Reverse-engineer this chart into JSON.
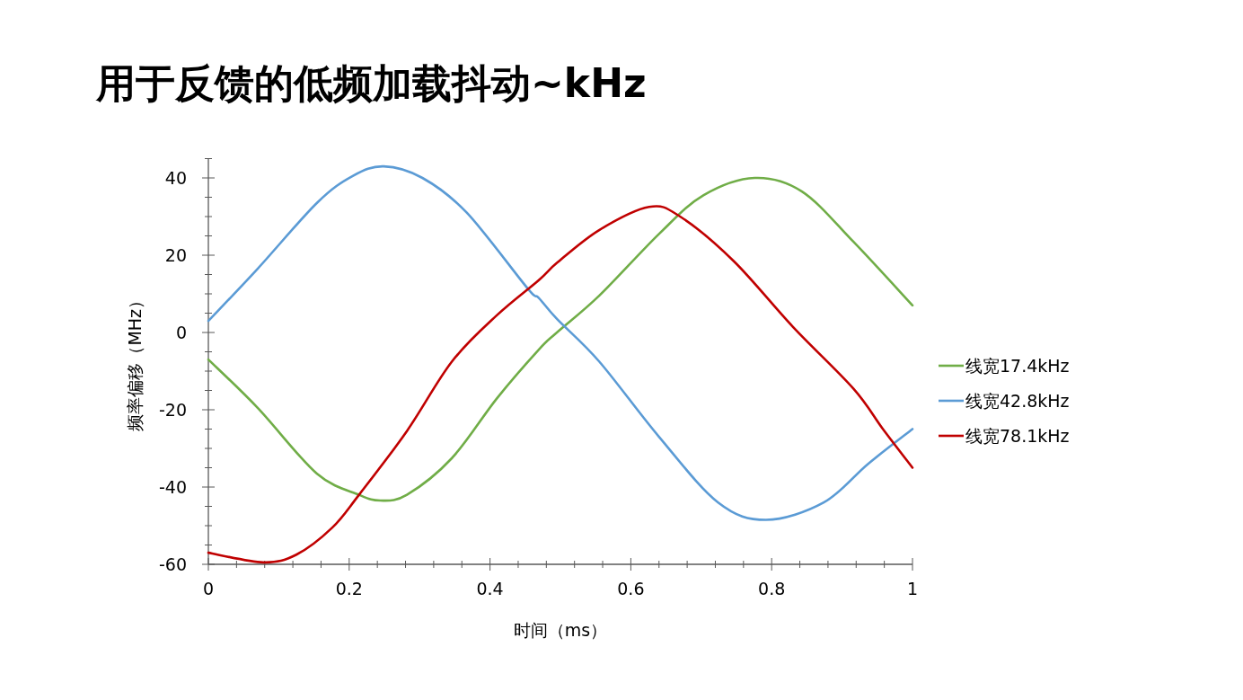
{
  "chart_data": {
    "type": "line",
    "title": "用于反馈的低频加载抖动~kHz",
    "xlabel": "时间（ms）",
    "ylabel": "频率偏移（MHz）",
    "xlim": [
      0,
      1
    ],
    "ylim": [
      -60,
      45
    ],
    "xticks": [
      0,
      {
        "value": 0.04,
        "label": null
      },
      {
        "value": 0.08,
        "label": null
      },
      {
        "value": 0.12,
        "label": null
      },
      {
        "value": 0.16,
        "label": null
      },
      0.2,
      {
        "value": 0.24,
        "label": null
      },
      {
        "value": 0.28,
        "label": null
      },
      {
        "value": 0.32,
        "label": null
      },
      {
        "value": 0.36,
        "label": null
      },
      0.4,
      {
        "value": 0.44,
        "label": null
      },
      {
        "value": 0.48,
        "label": null
      },
      {
        "value": 0.52,
        "label": null
      },
      {
        "value": 0.56,
        "label": null
      },
      0.6,
      {
        "value": 0.64,
        "label": null
      },
      {
        "value": 0.68,
        "label": null
      },
      {
        "value": 0.72,
        "label": null
      },
      {
        "value": 0.76,
        "label": null
      },
      0.8,
      {
        "value": 0.84,
        "label": null
      },
      {
        "value": 0.88,
        "label": null
      },
      {
        "value": 0.92,
        "label": null
      },
      {
        "value": 0.96,
        "label": null
      },
      1
    ],
    "yticks": [
      -60,
      {
        "value": -55,
        "label": null
      },
      {
        "value": -50,
        "label": null
      },
      {
        "value": -45,
        "label": null
      },
      -40,
      {
        "value": -35,
        "label": null
      },
      {
        "value": -30,
        "label": null
      },
      {
        "value": -25,
        "label": null
      },
      -20,
      {
        "value": -15,
        "label": null
      },
      {
        "value": -10,
        "label": null
      },
      {
        "value": -5,
        "label": null
      },
      0,
      {
        "value": 5,
        "label": null
      },
      {
        "value": 10,
        "label": null
      },
      {
        "value": 15,
        "label": null
      },
      20,
      {
        "value": 25,
        "label": null
      },
      {
        "value": 30,
        "label": null
      },
      {
        "value": 35,
        "label": null
      },
      40,
      {
        "value": 45,
        "label": null
      }
    ],
    "grid": false,
    "legend": "right",
    "marker": "none",
    "line_style": "solid",
    "series": [
      {
        "name": "线宽17.4kHz",
        "color": "#70ad47",
        "x": [
          0,
          0.07,
          0.154,
          0.214,
          0.244,
          0.282,
          0.346,
          0.41,
          0.469,
          0.495,
          0.555,
          0.64,
          0.703,
          0.776,
          0.843,
          0.916,
          1
        ],
        "values": [
          -7,
          -19.5,
          -36.5,
          -42,
          -43.5,
          -42,
          -32.5,
          -17,
          -4.5,
          0,
          9.5,
          25.5,
          35.5,
          40,
          36.5,
          23.5,
          7
        ]
      },
      {
        "name": "线宽42.8kHz",
        "color": "#5b9bd5",
        "x": [
          0,
          0.07,
          0.154,
          0.205,
          0.249,
          0.304,
          0.367,
          0.453,
          0.469,
          0.495,
          0.555,
          0.64,
          0.724,
          0.792,
          0.874,
          0.937,
          1
        ],
        "values": [
          3,
          16.5,
          33.5,
          40.5,
          43,
          40,
          31,
          11.5,
          9,
          3.5,
          -7.5,
          -27,
          -44,
          -48.5,
          -44,
          -34,
          -25
        ]
      },
      {
        "name": "线宽78.1kHz",
        "color": "#c00000",
        "x": [
          0,
          0.078,
          0.125,
          0.176,
          0.214,
          0.282,
          0.346,
          0.41,
          0.469,
          0.495,
          0.555,
          0.626,
          0.67,
          0.746,
          0.83,
          0.916,
          0.958,
          1
        ],
        "values": [
          -57,
          -59.5,
          -57.5,
          -50.5,
          -42,
          -25.5,
          -7.5,
          4.5,
          13.5,
          18,
          26.5,
          32.5,
          30,
          18.5,
          1.5,
          -14.5,
          -25,
          -35
        ]
      }
    ]
  }
}
